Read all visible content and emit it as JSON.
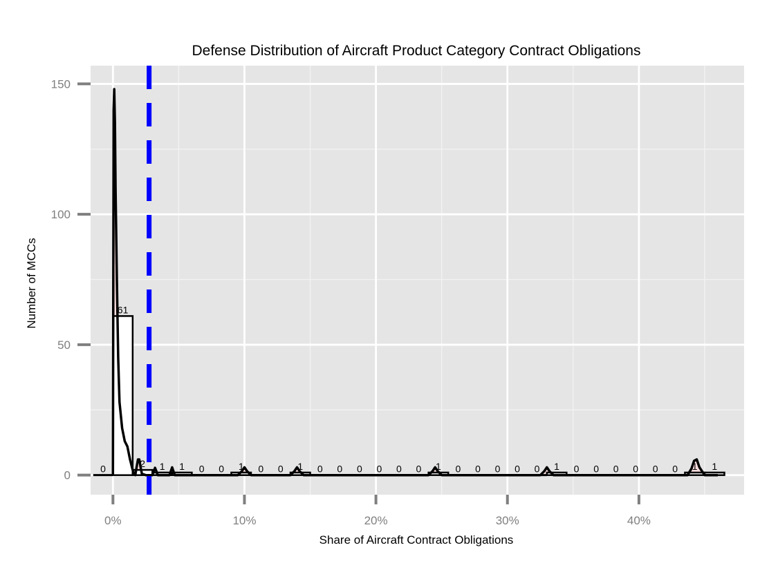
{
  "chart_data": {
    "type": "bar",
    "title": "Defense Distribution of Aircraft Product Category Contract Obligations",
    "xlabel": "Share of Aircraft Contract Obligations",
    "ylabel": "Number of MCCs",
    "xlim": [
      -0.017,
      0.48
    ],
    "ylim": [
      -7.5,
      157
    ],
    "x_ticks": [
      0,
      0.1,
      0.2,
      0.3,
      0.4
    ],
    "x_tick_labels": [
      "0%",
      "10%",
      "20%",
      "30%",
      "40%"
    ],
    "y_ticks": [
      0,
      50,
      100,
      150
    ],
    "y_tick_labels": [
      "0",
      "50",
      "100",
      "150"
    ],
    "grid": true,
    "bin_width": 0.015,
    "bins": [
      {
        "x": -0.0075,
        "count": 0,
        "label": "0"
      },
      {
        "x": 0.0075,
        "count": 61,
        "label": "61"
      },
      {
        "x": 0.0225,
        "count": 2,
        "label": "2"
      },
      {
        "x": 0.0375,
        "count": 1,
        "label": "1"
      },
      {
        "x": 0.0525,
        "count": 1,
        "label": "1"
      },
      {
        "x": 0.0675,
        "count": 0,
        "label": "0"
      },
      {
        "x": 0.0825,
        "count": 0,
        "label": "0"
      },
      {
        "x": 0.0975,
        "count": 1,
        "label": "1"
      },
      {
        "x": 0.1125,
        "count": 0,
        "label": "0"
      },
      {
        "x": 0.1275,
        "count": 0,
        "label": "0"
      },
      {
        "x": 0.1425,
        "count": 1,
        "label": "1"
      },
      {
        "x": 0.1575,
        "count": 0,
        "label": "0"
      },
      {
        "x": 0.1725,
        "count": 0,
        "label": "0"
      },
      {
        "x": 0.1875,
        "count": 0,
        "label": "0"
      },
      {
        "x": 0.2025,
        "count": 0,
        "label": "0"
      },
      {
        "x": 0.2175,
        "count": 0,
        "label": "0"
      },
      {
        "x": 0.2325,
        "count": 0,
        "label": "0"
      },
      {
        "x": 0.2475,
        "count": 1,
        "label": "1"
      },
      {
        "x": 0.2625,
        "count": 0,
        "label": "0"
      },
      {
        "x": 0.2775,
        "count": 0,
        "label": "0"
      },
      {
        "x": 0.2925,
        "count": 0,
        "label": "0"
      },
      {
        "x": 0.3075,
        "count": 0,
        "label": "0"
      },
      {
        "x": 0.3225,
        "count": 0,
        "label": "0"
      },
      {
        "x": 0.3375,
        "count": 1,
        "label": "1"
      },
      {
        "x": 0.3525,
        "count": 0,
        "label": "0"
      },
      {
        "x": 0.3675,
        "count": 0,
        "label": "0"
      },
      {
        "x": 0.3825,
        "count": 0,
        "label": "0"
      },
      {
        "x": 0.3975,
        "count": 0,
        "label": "0"
      },
      {
        "x": 0.4125,
        "count": 0,
        "label": "0"
      },
      {
        "x": 0.4275,
        "count": 0,
        "label": "0"
      },
      {
        "x": 0.4425,
        "count": 1,
        "label": "1"
      },
      {
        "x": 0.4575,
        "count": 1,
        "label": "1"
      }
    ],
    "density_curve": {
      "x": [
        0,
        0.0005,
        0.001,
        0.0015,
        0.002,
        0.003,
        0.004,
        0.005,
        0.007,
        0.009,
        0.011,
        0.013,
        0.015,
        0.016,
        0.017,
        0.018,
        0.019,
        0.02,
        0.021,
        0.022,
        0.025,
        0.028,
        0.03,
        0.031,
        0.032,
        0.033,
        0.034,
        0.035,
        0.04,
        0.043,
        0.044,
        0.045,
        0.046,
        0.047,
        0.048,
        0.06,
        0.095,
        0.098,
        0.1,
        0.102,
        0.105,
        0.135,
        0.138,
        0.14,
        0.142,
        0.145,
        0.24,
        0.243,
        0.245,
        0.247,
        0.25,
        0.325,
        0.328,
        0.33,
        0.332,
        0.335,
        0.437,
        0.44,
        0.442,
        0.444,
        0.446,
        0.45,
        0.46
      ],
      "y": [
        0,
        140,
        148,
        135,
        110,
        75,
        45,
        28,
        18,
        13,
        11,
        6,
        2,
        0.5,
        0,
        3,
        6,
        6,
        3,
        0.5,
        0,
        0,
        0,
        1.5,
        2.8,
        1.5,
        0,
        0,
        0,
        0,
        1.5,
        3,
        1.5,
        0,
        0,
        0,
        0,
        1.5,
        3,
        1.5,
        0,
        0,
        1.5,
        3,
        1.5,
        0,
        0,
        1.5,
        3,
        1.5,
        0,
        0,
        1.5,
        3,
        1.5,
        0,
        0,
        2.5,
        5.5,
        6,
        3,
        0,
        0
      ]
    },
    "reference_line": {
      "x": 0.0275,
      "color": "#0000ff",
      "style": "dashed"
    },
    "colors": {
      "panel": "#e5e5e5",
      "grid_major": "#ffffff",
      "grid_minor": "#f2f2f2",
      "bar_fill": "#ffffff",
      "bar_outline": "#000000",
      "density_fill": "#ffdddd",
      "density_line": "#000000",
      "tick": "#7f7f7f"
    }
  }
}
